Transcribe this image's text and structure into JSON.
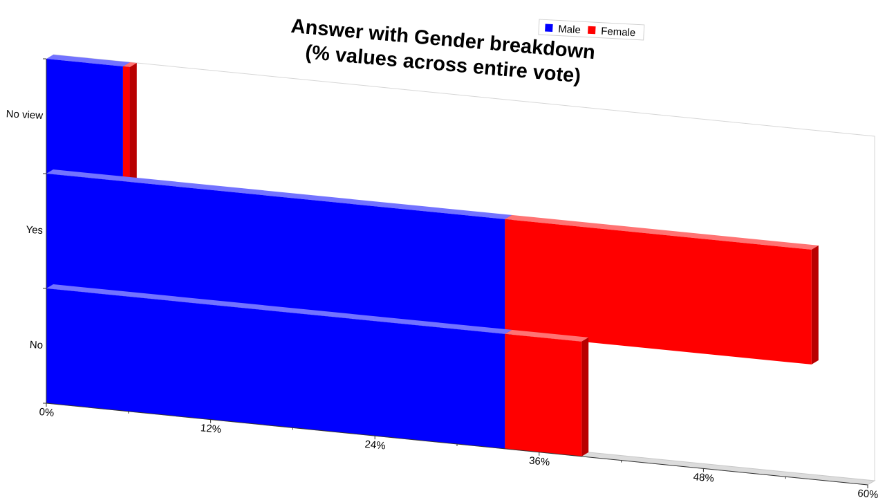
{
  "chart_data": {
    "type": "bar",
    "orientation": "horizontal",
    "stacked": true,
    "title_lines": [
      "Answer with Gender breakdown",
      "(% values across entire vote)"
    ],
    "categories": [
      "No",
      "Yes",
      "No view"
    ],
    "series": [
      {
        "name": "Male",
        "values": [
          33.5,
          33.5,
          5.6
        ],
        "color": "#0000ff"
      },
      {
        "name": "Female",
        "values": [
          5.6,
          22.4,
          0.5
        ],
        "color": "#ff0000"
      }
    ],
    "xlim": [
      0,
      60
    ],
    "xticks": [
      "0%",
      "12%",
      "24%",
      "36%",
      "48%",
      "60%"
    ],
    "legend_position": "top",
    "grid": false,
    "style": "3d"
  }
}
